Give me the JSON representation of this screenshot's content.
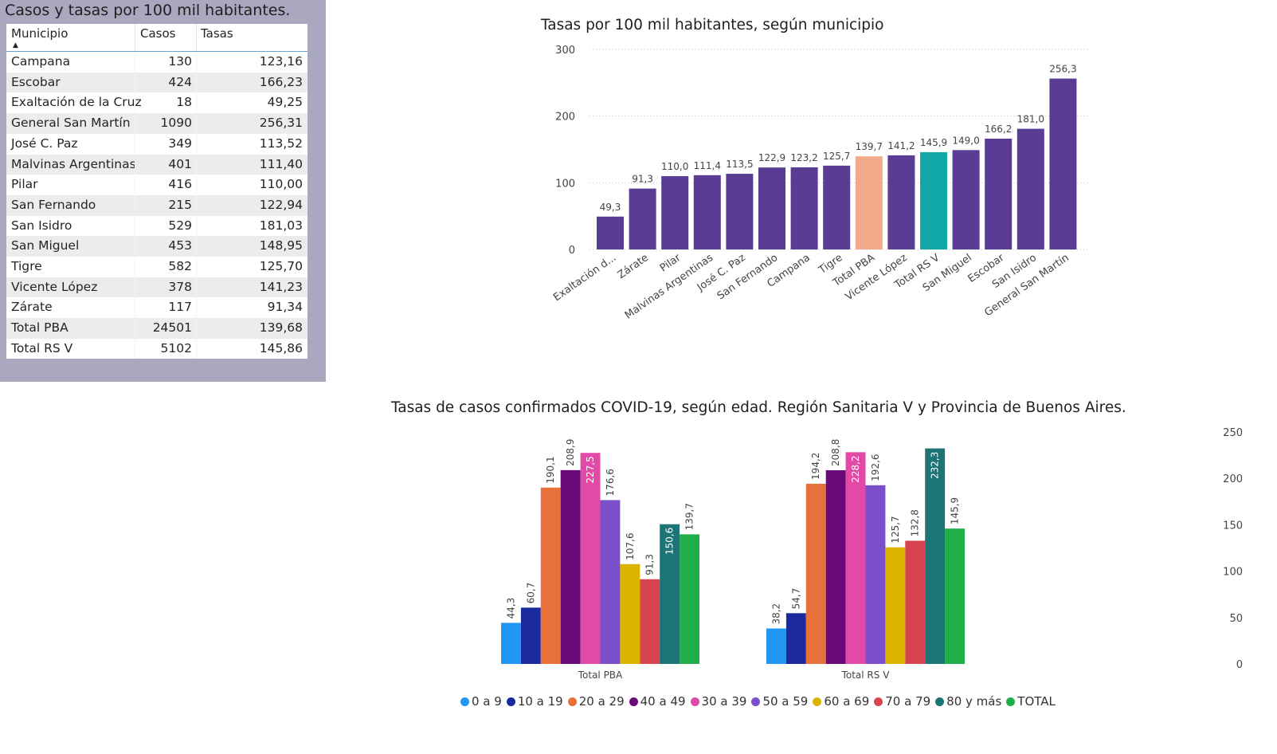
{
  "table": {
    "title": "Casos y tasas por 100 mil habitantes.",
    "columns": [
      "Municipio",
      "Casos",
      "Tasas"
    ],
    "sort_indicator": "▲",
    "rows": [
      [
        "Campana",
        "130",
        "123,16"
      ],
      [
        "Escobar",
        "424",
        "166,23"
      ],
      [
        "Exaltación de la Cruz",
        "18",
        "49,25"
      ],
      [
        "General San Martín",
        "1090",
        "256,31"
      ],
      [
        "José C. Paz",
        "349",
        "113,52"
      ],
      [
        "Malvinas Argentinas",
        "401",
        "111,40"
      ],
      [
        "Pilar",
        "416",
        "110,00"
      ],
      [
        "San Fernando",
        "215",
        "122,94"
      ],
      [
        "San Isidro",
        "529",
        "181,03"
      ],
      [
        "San Miguel",
        "453",
        "148,95"
      ],
      [
        "Tigre",
        "582",
        "125,70"
      ],
      [
        "Vicente López",
        "378",
        "141,23"
      ],
      [
        "Zárate",
        "117",
        "91,34"
      ],
      [
        "Total PBA",
        "24501",
        "139,68"
      ],
      [
        "Total RS V",
        "5102",
        "145,86"
      ]
    ]
  },
  "chart_data": [
    {
      "type": "bar",
      "title": "Tasas por 100 mil habitantes, según municipio",
      "categories": [
        "Exaltación d...",
        "Zárate",
        "Pilar",
        "Malvinas Argentinas",
        "José C. Paz",
        "San Fernando",
        "Campana",
        "Tigre",
        "Total PBA",
        "Vicente López",
        "Total RS V",
        "San Miguel",
        "Escobar",
        "San Isidro",
        "General San Martín"
      ],
      "values": [
        49.3,
        91.3,
        110.0,
        111.4,
        113.5,
        122.9,
        123.2,
        125.7,
        139.7,
        141.2,
        145.9,
        149.0,
        166.2,
        181.0,
        256.3
      ],
      "value_labels": [
        "49,3",
        "91,3",
        "110,0",
        "111,4",
        "113,5",
        "122,9",
        "123,2",
        "125,7",
        "139,7",
        "141,2",
        "145,9",
        "149,0",
        "166,2",
        "181,0",
        "256,3"
      ],
      "colors": [
        "#5a3c95",
        "#5a3c95",
        "#5a3c95",
        "#5a3c95",
        "#5a3c95",
        "#5a3c95",
        "#5a3c95",
        "#5a3c95",
        "#f2a98a",
        "#5a3c95",
        "#12a8a8",
        "#5a3c95",
        "#5a3c95",
        "#5a3c95",
        "#5a3c95"
      ],
      "yticks": [
        "0",
        "100",
        "200",
        "300"
      ],
      "ylim": [
        0,
        300
      ],
      "grid": true
    },
    {
      "type": "bar",
      "title": "Tasas de casos confirmados COVID-19, según edad. Región Sanitaria V y Provincia de Buenos Aires.",
      "categories": [
        "Total PBA",
        "Total RS V"
      ],
      "series": [
        {
          "name": "0 a 9",
          "color": "#2196f3",
          "values": [
            44.3,
            38.2
          ],
          "labels": [
            "44,3",
            "38,2"
          ]
        },
        {
          "name": "10 a 19",
          "color": "#1a2a9e",
          "values": [
            60.7,
            54.7
          ],
          "labels": [
            "60,7",
            "54,7"
          ]
        },
        {
          "name": "20 a 29",
          "color": "#e8703a",
          "values": [
            190.1,
            194.2
          ],
          "labels": [
            "190,1",
            "194,2"
          ]
        },
        {
          "name": "40 a 49",
          "color": "#6a0a7a",
          "values": [
            208.9,
            208.8
          ],
          "labels": [
            "208,9",
            "208,8"
          ]
        },
        {
          "name": "30 a 39",
          "color": "#e24aa8",
          "values": [
            227.5,
            228.2
          ],
          "labels": [
            "227,5",
            "228,2"
          ]
        },
        {
          "name": "50 a 59",
          "color": "#7b4fc9",
          "values": [
            176.6,
            192.6
          ],
          "labels": [
            "176,6",
            "192,6"
          ]
        },
        {
          "name": "60 a 69",
          "color": "#dcb300",
          "values": [
            107.6,
            125.7
          ],
          "labels": [
            "107,6",
            "125,7"
          ]
        },
        {
          "name": "70 a 79",
          "color": "#d9434f",
          "values": [
            91.3,
            132.8
          ],
          "labels": [
            "91,3",
            "132,8"
          ]
        },
        {
          "name": "80 y más",
          "color": "#1d7474",
          "values": [
            150.6,
            232.3
          ],
          "labels": [
            "150,6",
            "232,3"
          ]
        },
        {
          "name": "TOTAL",
          "color": "#1fae47",
          "values": [
            139.7,
            145.9
          ],
          "labels": [
            "139,7",
            "145,9"
          ]
        }
      ],
      "inside_label_series": [
        "30 a 39",
        "80 y más"
      ],
      "yticks": [
        "0",
        "50",
        "100",
        "150",
        "200",
        "250"
      ],
      "ylim": [
        0,
        250
      ],
      "legend_position": "bottom"
    }
  ]
}
